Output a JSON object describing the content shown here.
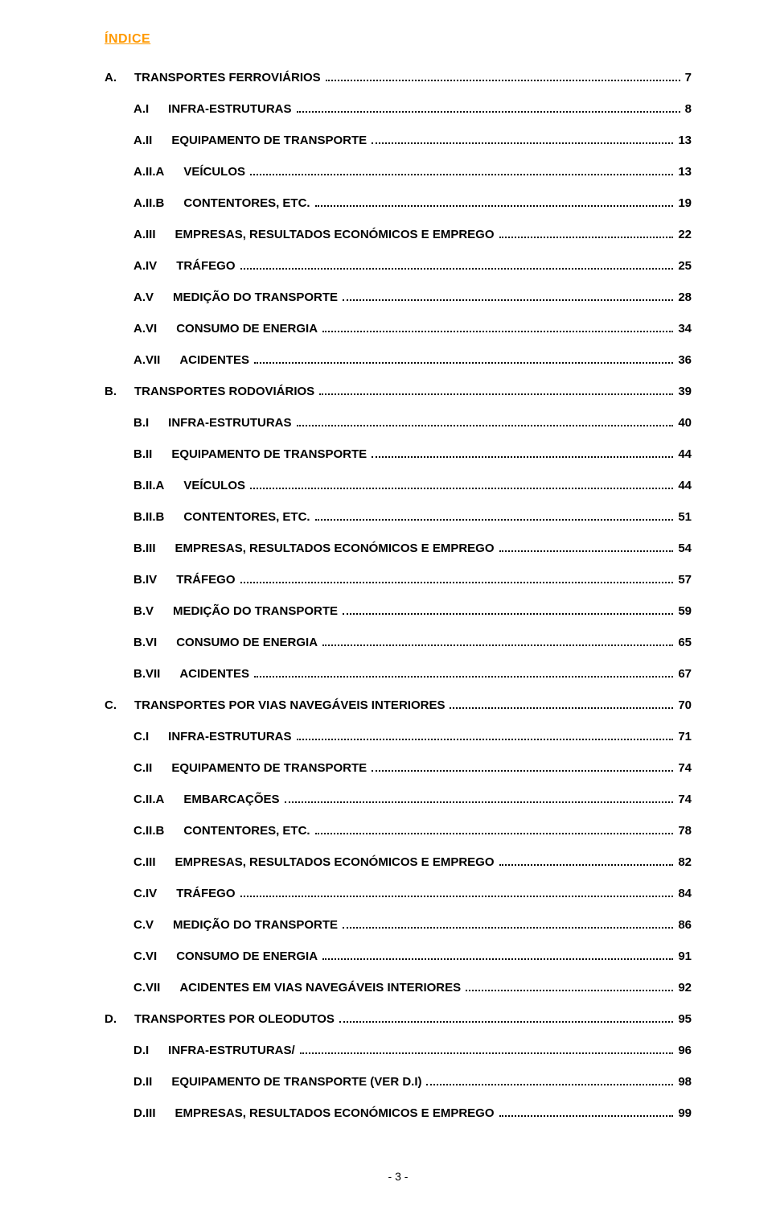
{
  "title": "ÍNDICE",
  "colors": {
    "title": "#ff9900",
    "text": "#000000",
    "background": "#ffffff"
  },
  "entries": [
    {
      "ref": "A.",
      "label": "TRANSPORTES FERROVIÁRIOS",
      "page": "7",
      "level": "section"
    },
    {
      "ref": "A.I",
      "label": "INFRA-ESTRUTURAS",
      "page": "8",
      "level": "sub"
    },
    {
      "ref": "A.II",
      "label": "EQUIPAMENTO DE TRANSPORTE",
      "page": "13",
      "level": "sub"
    },
    {
      "ref": "A.II.A",
      "label": "VEÍCULOS",
      "page": "13",
      "level": "sub"
    },
    {
      "ref": "A.II.B",
      "label": "CONTENTORES, ETC.",
      "page": "19",
      "level": "sub"
    },
    {
      "ref": "A.III",
      "label": "EMPRESAS, RESULTADOS ECONÓMICOS E EMPREGO",
      "page": "22",
      "level": "sub"
    },
    {
      "ref": "A.IV",
      "label": "TRÁFEGO",
      "page": "25",
      "level": "sub"
    },
    {
      "ref": "A.V",
      "label": "MEDIÇÃO DO TRANSPORTE",
      "page": "28",
      "level": "sub"
    },
    {
      "ref": "A.VI",
      "label": "CONSUMO DE ENERGIA",
      "page": "34",
      "level": "sub"
    },
    {
      "ref": "A.VII",
      "label": "ACIDENTES",
      "page": "36",
      "level": "sub"
    },
    {
      "ref": "B.",
      "label": "TRANSPORTES RODOVIÁRIOS",
      "page": "39",
      "level": "section"
    },
    {
      "ref": "B.I",
      "label": "INFRA-ESTRUTURAS",
      "page": "40",
      "level": "sub"
    },
    {
      "ref": "B.II",
      "label": "EQUIPAMENTO DE TRANSPORTE",
      "page": "44",
      "level": "sub"
    },
    {
      "ref": "B.II.A",
      "label": "VEÍCULOS",
      "page": "44",
      "level": "sub"
    },
    {
      "ref": "B.II.B",
      "label": "CONTENTORES, ETC.",
      "page": "51",
      "level": "sub"
    },
    {
      "ref": "B.III",
      "label": "EMPRESAS, RESULTADOS ECONÓMICOS E EMPREGO",
      "page": "54",
      "level": "sub"
    },
    {
      "ref": "B.IV",
      "label": "TRÁFEGO",
      "page": "57",
      "level": "sub"
    },
    {
      "ref": "B.V",
      "label": "MEDIÇÃO DO TRANSPORTE",
      "page": "59",
      "level": "sub"
    },
    {
      "ref": "B.VI",
      "label": "CONSUMO DE ENERGIA",
      "page": "65",
      "level": "sub"
    },
    {
      "ref": "B.VII",
      "label": "ACIDENTES",
      "page": "67",
      "level": "sub"
    },
    {
      "ref": "C.",
      "label": "TRANSPORTES POR VIAS NAVEGÁVEIS INTERIORES",
      "page": "70",
      "level": "section"
    },
    {
      "ref": "C.I",
      "label": "INFRA-ESTRUTURAS",
      "page": "71",
      "level": "sub"
    },
    {
      "ref": "C.II",
      "label": "EQUIPAMENTO DE TRANSPORTE",
      "page": "74",
      "level": "sub"
    },
    {
      "ref": "C.II.A",
      "label": "EMBARCAÇÕES",
      "page": "74",
      "level": "sub"
    },
    {
      "ref": "C.II.B",
      "label": "CONTENTORES, ETC.",
      "page": "78",
      "level": "sub"
    },
    {
      "ref": "C.III",
      "label": "EMPRESAS, RESULTADOS ECONÓMICOS E EMPREGO",
      "page": "82",
      "level": "sub"
    },
    {
      "ref": "C.IV",
      "label": "TRÁFEGO",
      "page": "84",
      "level": "sub"
    },
    {
      "ref": "C.V",
      "label": "MEDIÇÃO DO TRANSPORTE",
      "page": "86",
      "level": "sub"
    },
    {
      "ref": "C.VI",
      "label": "CONSUMO DE ENERGIA",
      "page": "91",
      "level": "sub"
    },
    {
      "ref": "C.VII",
      "label": "ACIDENTES EM VIAS NAVEGÁVEIS INTERIORES",
      "page": "92",
      "level": "sub"
    },
    {
      "ref": "D.",
      "label": "TRANSPORTES POR OLEODUTOS",
      "page": "95",
      "level": "section"
    },
    {
      "ref": "D.I",
      "label": "INFRA-ESTRUTURAS/",
      "page": "96",
      "level": "sub"
    },
    {
      "ref": "D.II",
      "label": "EQUIPAMENTO DE TRANSPORTE (VER D.I)",
      "page": "98",
      "level": "sub"
    },
    {
      "ref": "D.III",
      "label": "EMPRESAS, RESULTADOS ECONÓMICOS E EMPREGO",
      "page": "99",
      "level": "sub"
    }
  ],
  "footer": "- 3 -"
}
